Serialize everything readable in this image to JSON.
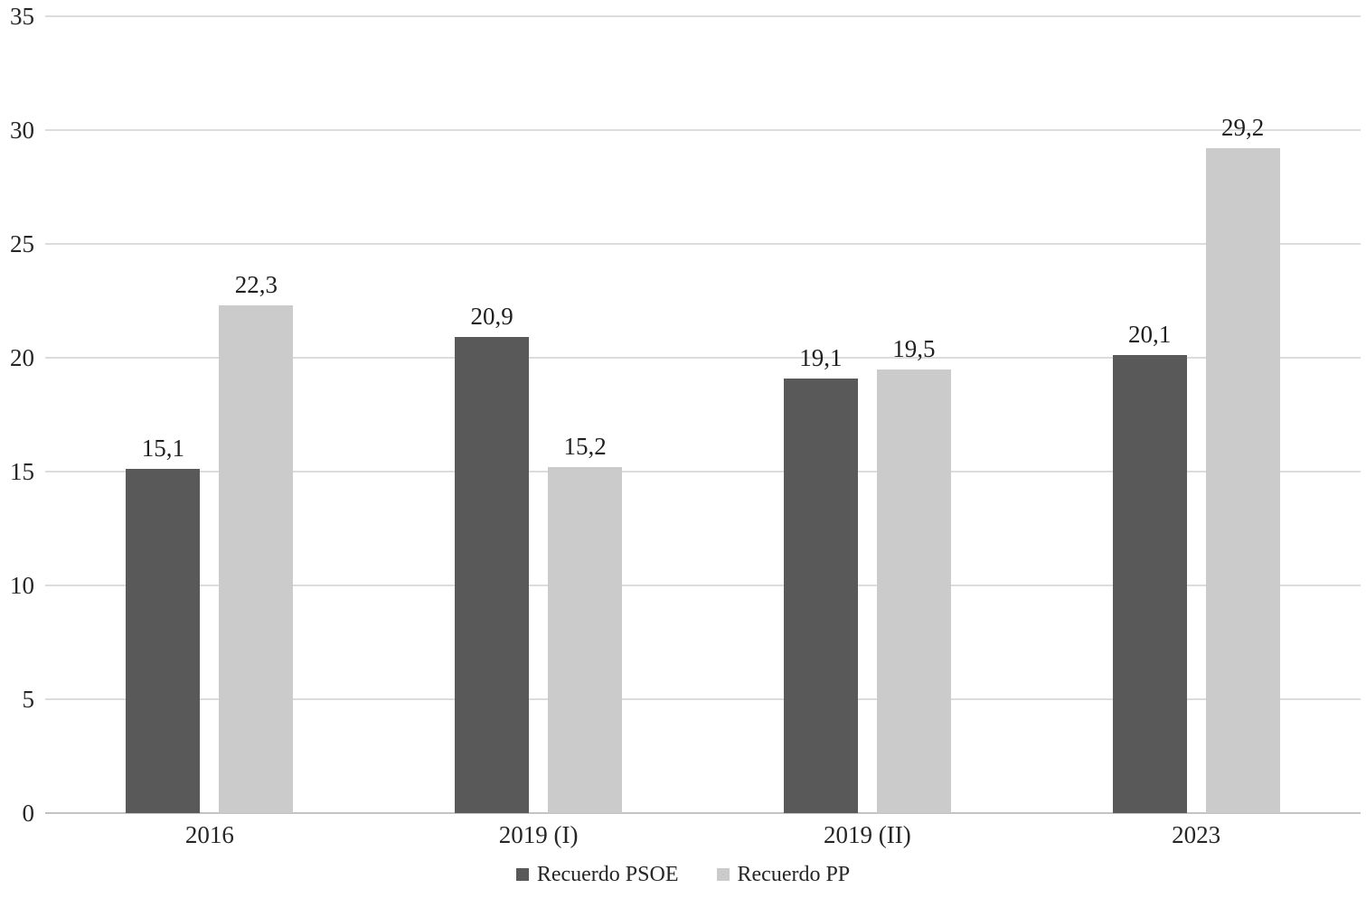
{
  "chart_data": {
    "type": "bar",
    "title": "",
    "xlabel": "",
    "ylabel": "",
    "categories": [
      "2016",
      "2019 (I)",
      "2019 (II)",
      "2023"
    ],
    "series": [
      {
        "name": "Recuerdo PSOE",
        "color": "#595959",
        "values": [
          15.1,
          20.9,
          19.1,
          20.1
        ],
        "labels": [
          "15,1",
          "20,9",
          "19,1",
          "20,1"
        ]
      },
      {
        "name": "Recuerdo PP",
        "color": "#cbcbcb",
        "values": [
          22.3,
          15.2,
          19.5,
          29.2
        ],
        "labels": [
          "22,3",
          "15,2",
          "19,5",
          "29,2"
        ]
      }
    ],
    "ylim": [
      0,
      35
    ],
    "yticks": [
      0,
      5,
      10,
      15,
      20,
      25,
      30,
      35
    ],
    "grid": true,
    "legend_position": "bottom",
    "colors": {
      "gridline": "#dcdcdc",
      "axis_line": "#c3c3c3",
      "text": "#262626"
    }
  }
}
